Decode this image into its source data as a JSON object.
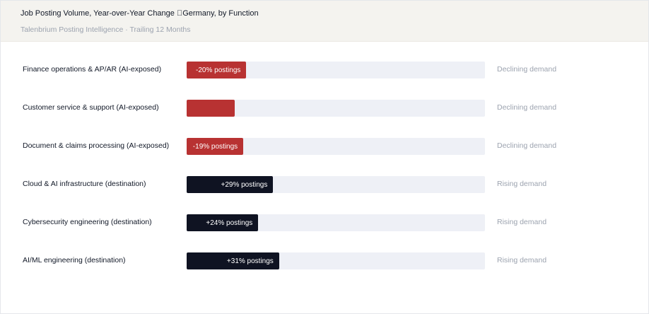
{
  "header": {
    "title": "Job Posting Volume, Year-over-Year Change \u0000Germany, by Function",
    "subtitle": "Talenbrium Posting Intelligence · Trailing 12 Months"
  },
  "colors": {
    "declining": "#b83232",
    "rising": "#0f1322",
    "track": "#eef0f6"
  },
  "chart_data": {
    "type": "bar",
    "orientation": "horizontal",
    "title": "Job Posting Volume, Year-over-Year Change \u0000Germany, by Function",
    "subtitle": "Talenbrium Posting Intelligence · Trailing 12 Months",
    "unit": "% YoY change in postings",
    "scale_max_abs": 100,
    "categories": [
      "Finance operations & AP/AR (AI-exposed)",
      "Customer service & support (AI-exposed)",
      "Document & claims processing (AI-exposed)",
      "Cloud & AI infrastructure (destination)",
      "Cybersecurity engineering (destination)",
      "AI/ML engineering (destination)"
    ],
    "values": [
      -20,
      -16,
      -19,
      29,
      24,
      31
    ],
    "bar_labels": [
      "-20% postings",
      "",
      "-19% postings",
      "+29% postings",
      "+24% postings",
      "+31% postings"
    ],
    "status": [
      "Declining demand",
      "Declining demand",
      "Declining demand",
      "Rising demand",
      "Rising demand",
      "Rising demand"
    ],
    "grid": false,
    "legend": "none"
  }
}
